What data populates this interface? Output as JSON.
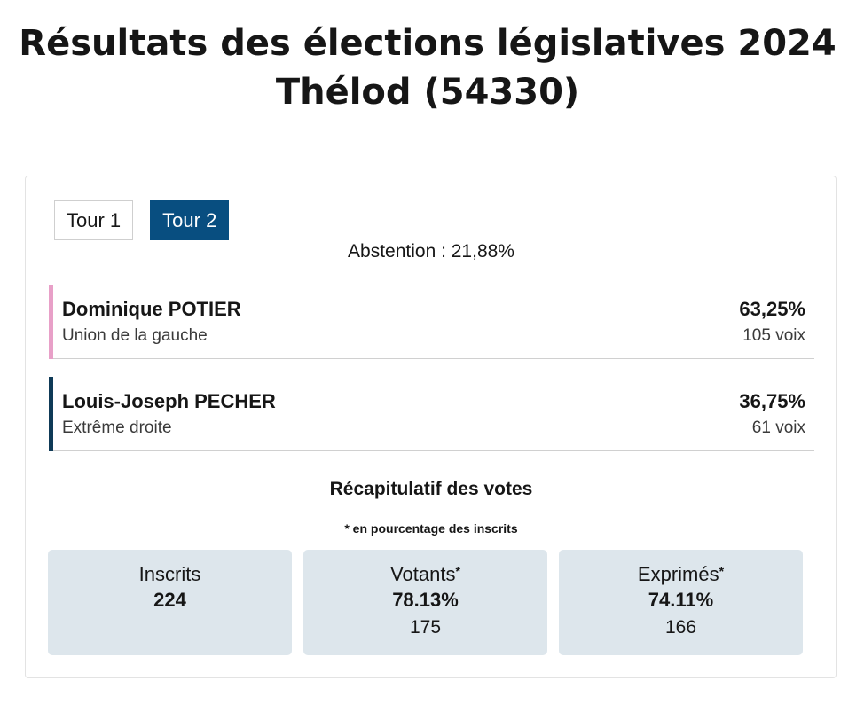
{
  "header": {
    "title_line1": "Résultats des élections législatives 2024",
    "title_line2": "Thélod (54330)"
  },
  "tabs": [
    {
      "label": "Tour 1",
      "active": false
    },
    {
      "label": "Tour 2",
      "active": true
    }
  ],
  "abstention": "Abstention : 21,88%",
  "candidates": [
    {
      "name": "Dominique POTIER",
      "party": "Union de la gauche",
      "percent": "63,25%",
      "votes": "105 voix",
      "color": "#e8a0c8"
    },
    {
      "name": "Louis-Joseph PECHER",
      "party": "Extrême droite",
      "percent": "36,75%",
      "votes": "61 voix",
      "color": "#0f3a57"
    }
  ],
  "recap": {
    "title": "Récapitulatif des votes",
    "note": "* en pourcentage des inscrits",
    "boxes": [
      {
        "label": "Inscrits",
        "star": "",
        "primary": "224",
        "secondary": ""
      },
      {
        "label": "Votants",
        "star": "*",
        "primary": "78.13%",
        "secondary": "175"
      },
      {
        "label": "Exprimés",
        "star": "*",
        "primary": "74.11%",
        "secondary": "166"
      }
    ]
  },
  "colors": {
    "accent": "#084e80",
    "box_background": "#dde6ec"
  }
}
